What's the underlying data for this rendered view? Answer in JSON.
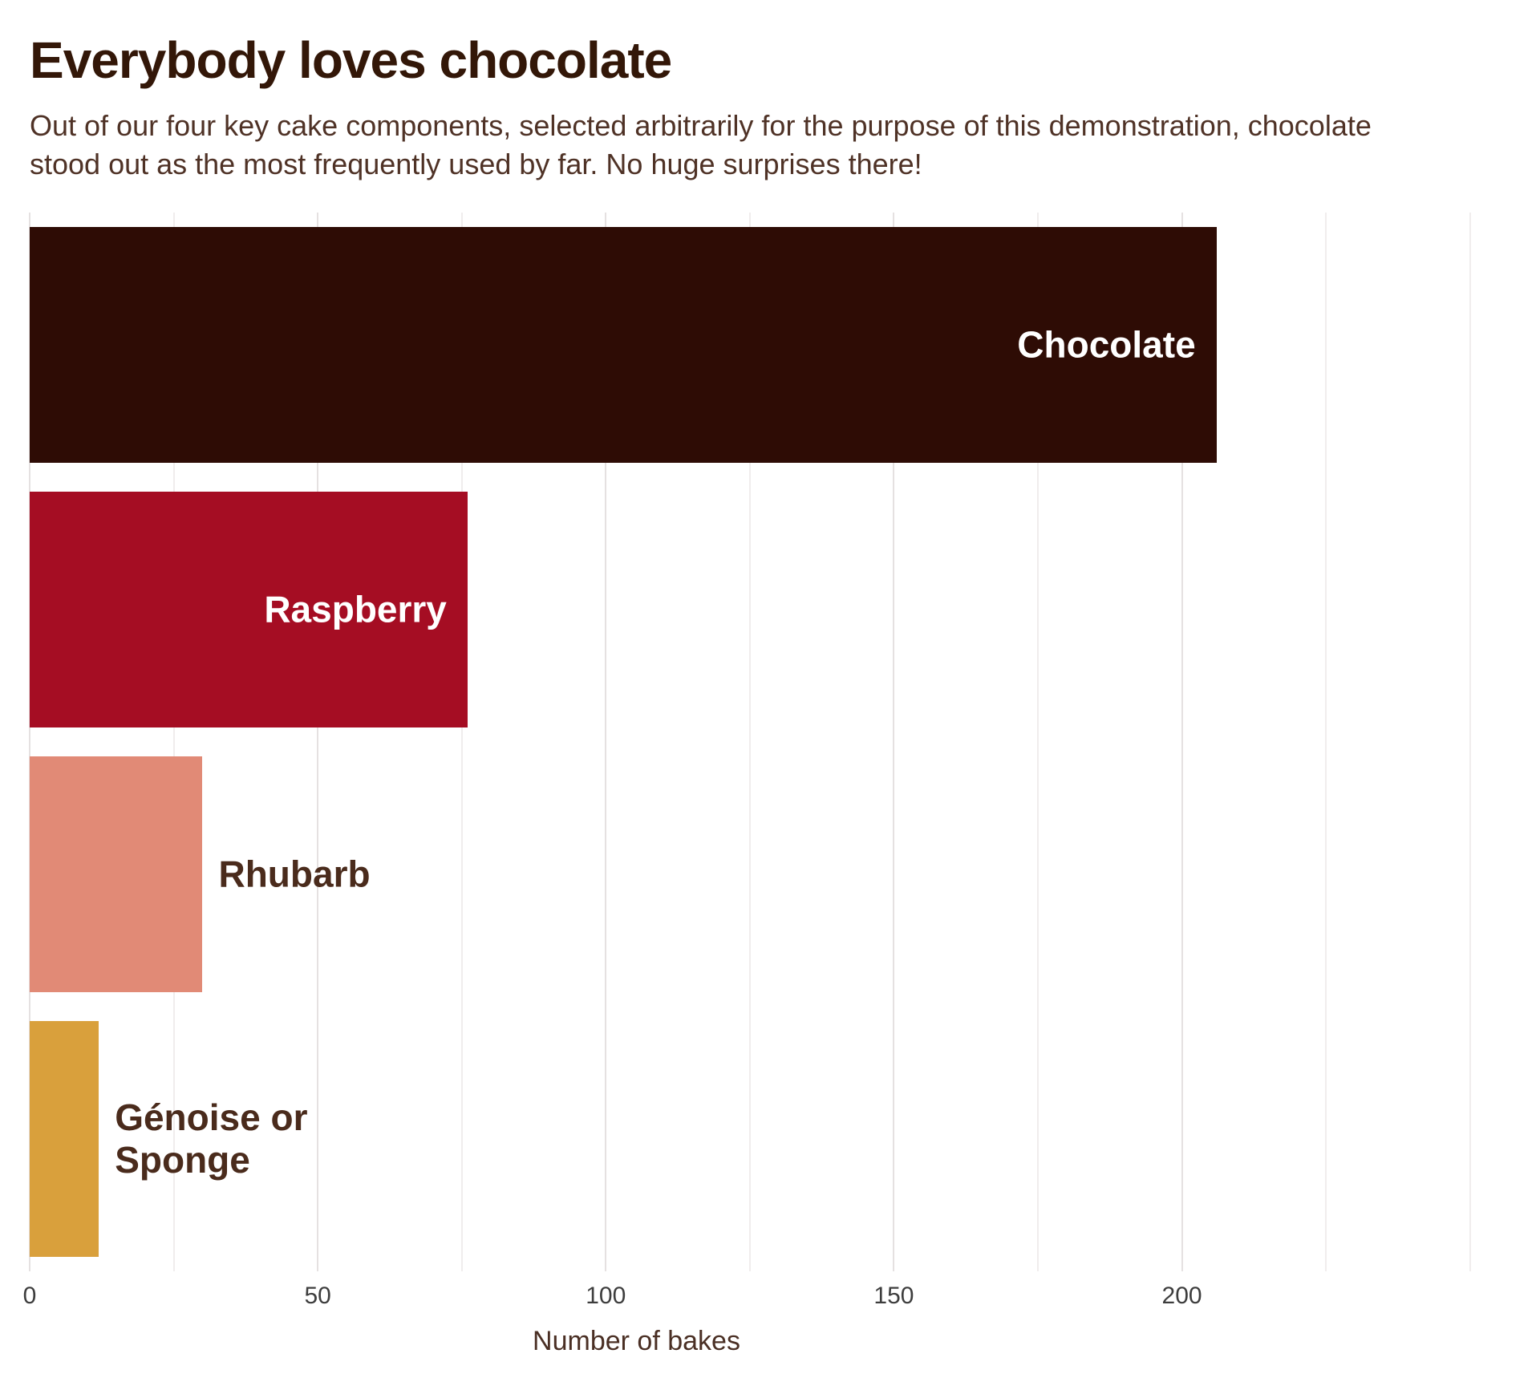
{
  "header": {
    "title": "Everybody loves chocolate",
    "subtitle": "Out of our four key cake components, selected arbitrarily for the purpose of this demonstration, chocolate stood out as the most frequently used by far. No huge surprises there!"
  },
  "chart_data": {
    "type": "bar",
    "orientation": "horizontal",
    "title": "Everybody loves chocolate",
    "subtitle": "Out of our four key cake components, selected arbitrarily for the purpose of this demonstration, chocolate stood out as the most frequently used by far. No huge surprises there!",
    "categories": [
      "Chocolate",
      "Raspberry",
      "Rhubarb",
      "Génoise or Sponge"
    ],
    "values": [
      206,
      76,
      30,
      12
    ],
    "bar_colors": [
      "#2e0c05",
      "#a50d23",
      "#e18a76",
      "#d9a03c"
    ],
    "label_inside": [
      true,
      true,
      false,
      false
    ],
    "label_color_inside": "#ffffff",
    "label_color_outside": "#4a2b1c",
    "xlabel": "Number of bakes",
    "ylabel": "",
    "x_ticks": [
      0,
      50,
      100,
      150,
      200
    ],
    "gridlines": [
      0,
      25,
      50,
      75,
      100,
      125,
      150,
      175,
      200,
      225,
      250
    ],
    "xlim": [
      0,
      257
    ],
    "grid": "vertical",
    "legend": "none",
    "background": "#ffffff"
  }
}
